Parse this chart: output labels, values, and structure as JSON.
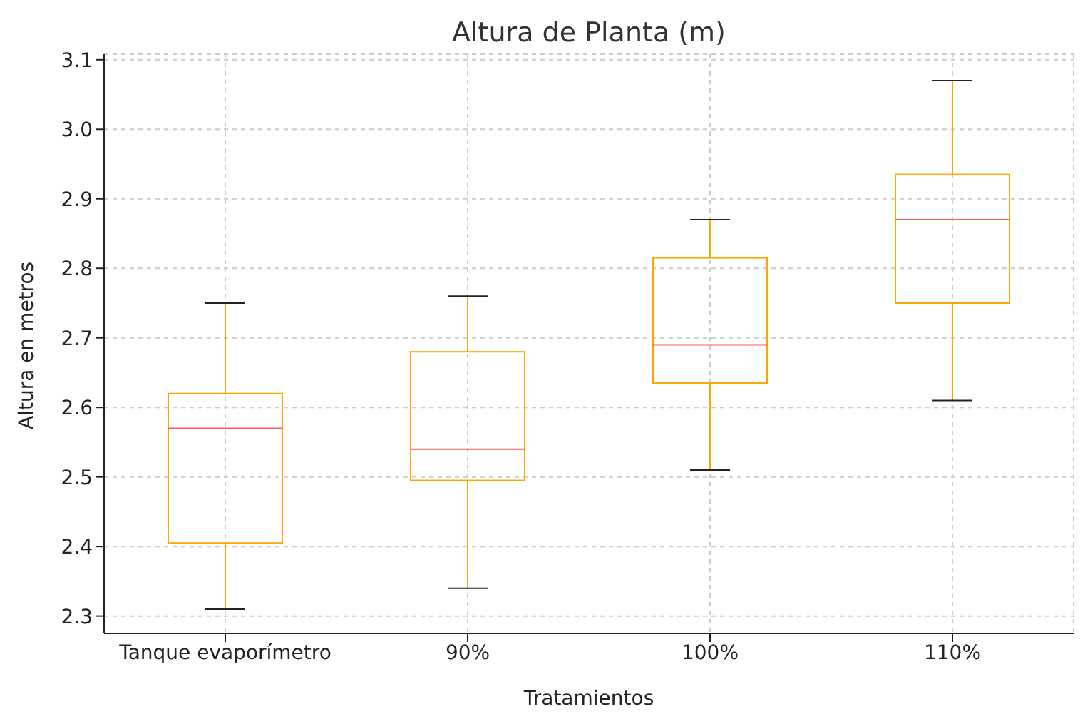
{
  "chart_data": {
    "type": "box",
    "title": "Altura de Planta (m)",
    "xlabel": "Tratamientos",
    "ylabel": "Altura en metros",
    "categories": [
      "Tanque evaporímetro",
      "90%",
      "100%",
      "110%"
    ],
    "boxes": [
      {
        "low": 2.31,
        "q1": 2.405,
        "median": 2.57,
        "q3": 2.62,
        "high": 2.75
      },
      {
        "low": 2.34,
        "q1": 2.495,
        "median": 2.54,
        "q3": 2.68,
        "high": 2.76
      },
      {
        "low": 2.51,
        "q1": 2.635,
        "median": 2.69,
        "q3": 2.815,
        "high": 2.87
      },
      {
        "low": 2.61,
        "q1": 2.75,
        "median": 2.87,
        "q3": 2.935,
        "high": 3.07
      }
    ],
    "color": "#ffa500",
    "ylim": [
      2.275,
      3.108
    ],
    "yticks": [
      2.3,
      2.4,
      2.5,
      2.6,
      2.7,
      2.8,
      2.9,
      {
        "value": 3,
        "label": "3.0"
      },
      3.1
    ],
    "grid": true
  }
}
